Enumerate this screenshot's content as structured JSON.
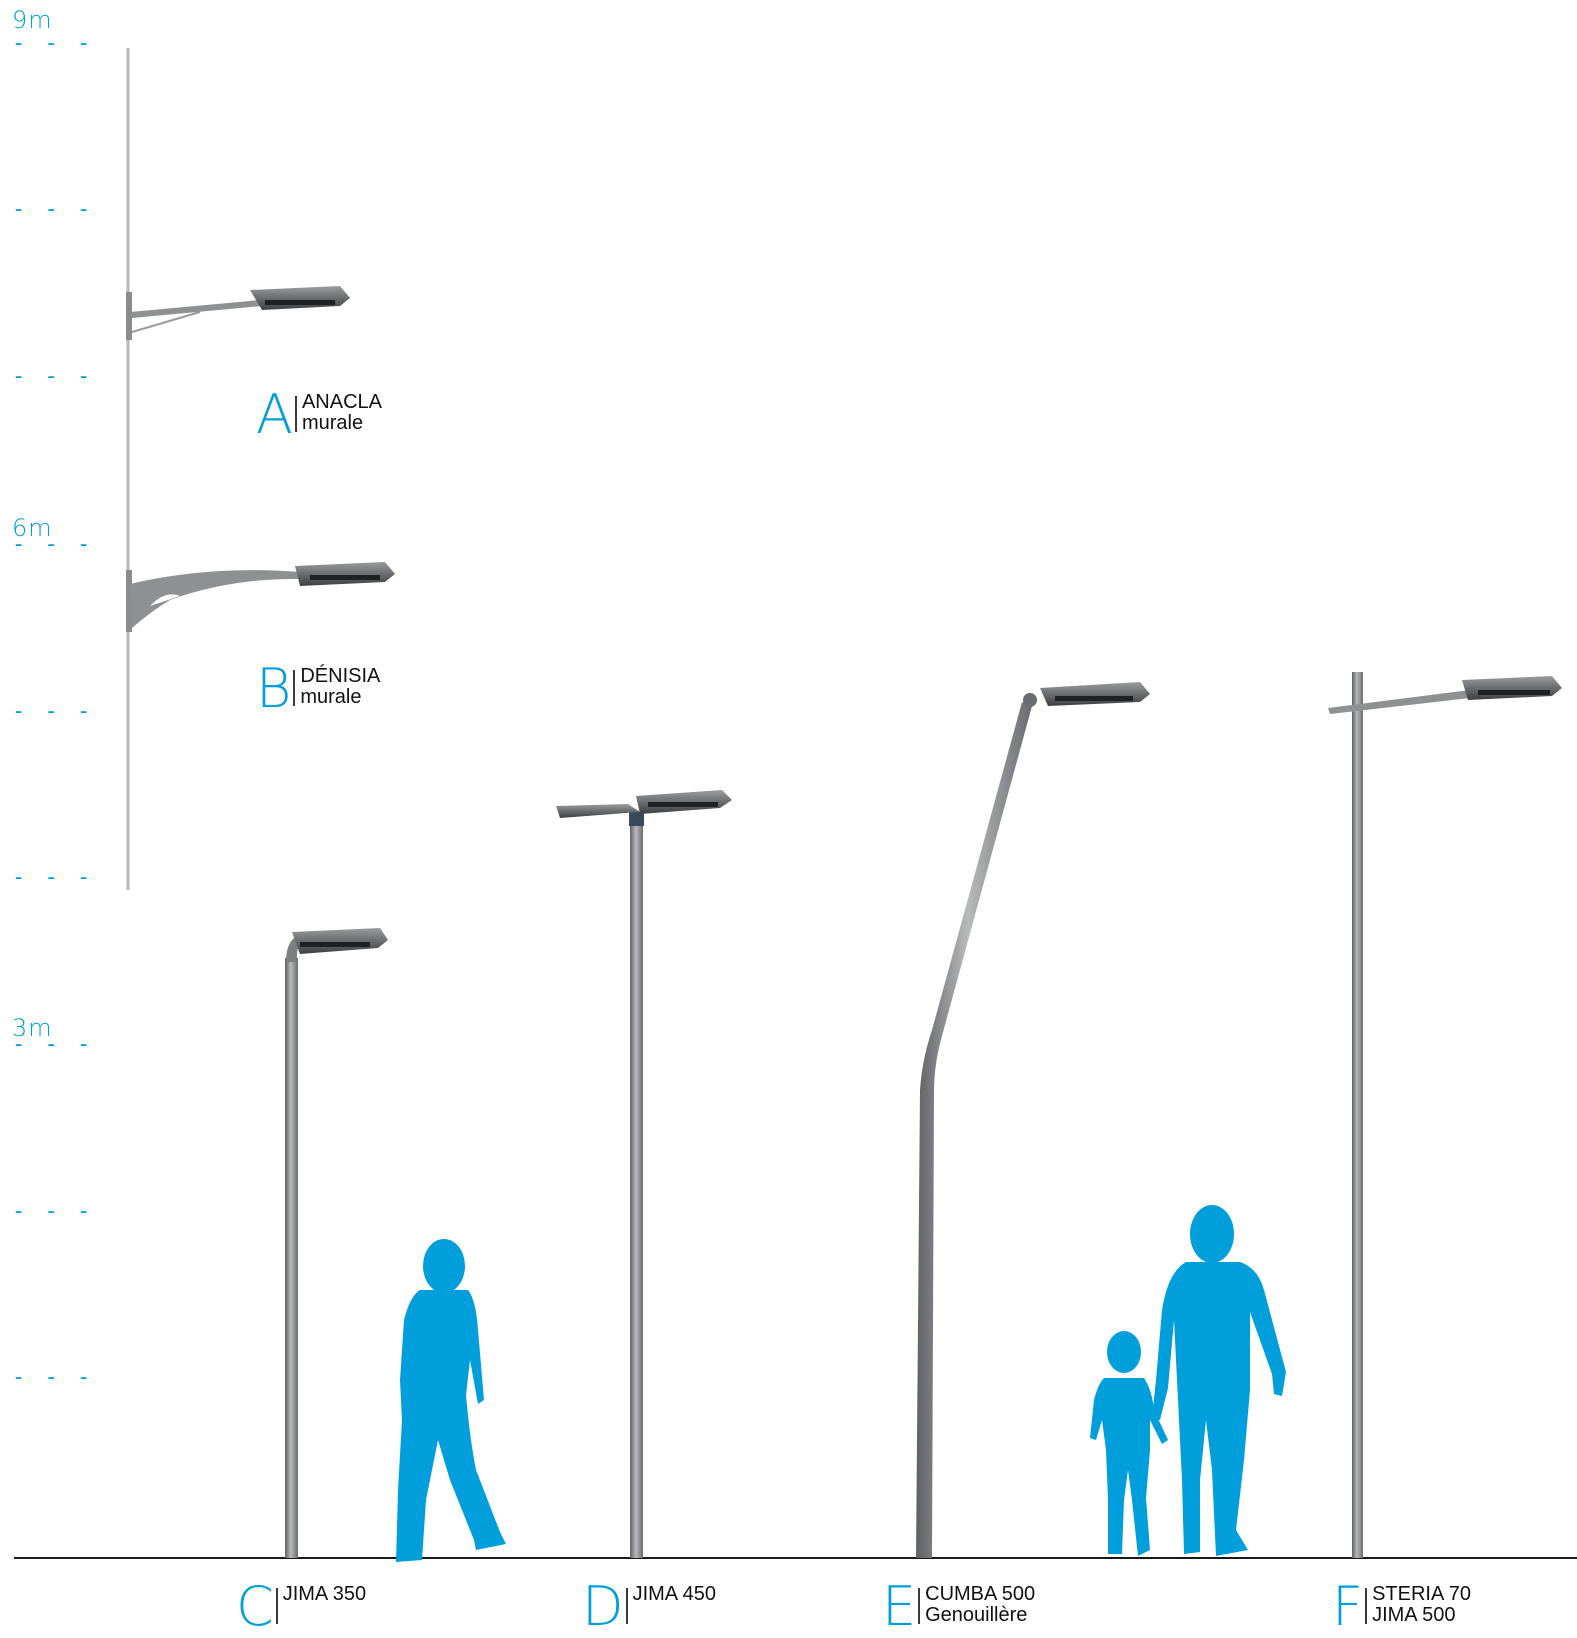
{
  "scale": {
    "labels": [
      "9m",
      "6m",
      "3m"
    ],
    "dash": "- - -",
    "color": "#009fdb"
  },
  "colors": {
    "accent": "#009fdb",
    "pole": "#7a7b7d",
    "luminaire": "#4e5053",
    "ground": "#1a1a1a"
  },
  "products": {
    "a": {
      "letter": "A",
      "line1": "ANACLA",
      "line2": "murale"
    },
    "b": {
      "letter": "B",
      "line1": "DÉNISIA",
      "line2": "murale"
    },
    "c": {
      "letter": "C",
      "line1": "JIMA 350",
      "line2": ""
    },
    "d": {
      "letter": "D",
      "line1": "JIMA 450",
      "line2": ""
    },
    "e": {
      "letter": "E",
      "line1": "CUMBA 500",
      "line2": "Genouillère"
    },
    "f": {
      "letter": "F",
      "line1": "STERIA 70",
      "line2": "JIMA 500"
    }
  }
}
